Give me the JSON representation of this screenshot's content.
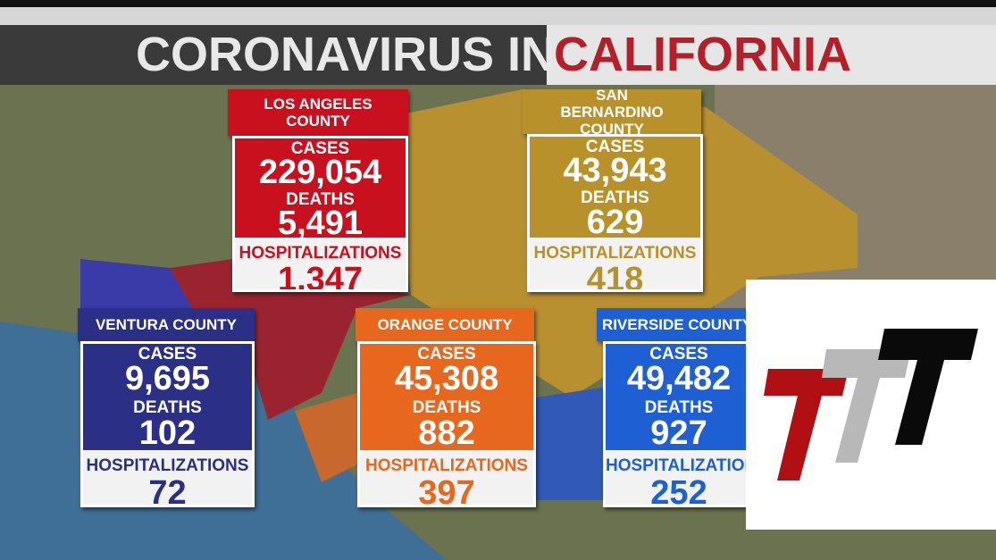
{
  "header": {
    "title_left": "CORONAVIRUS IN",
    "title_right": "CALIFORNIA"
  },
  "counties": [
    {
      "name": "LOS ANGELES COUNTY",
      "cases_label": "CASES",
      "cases": "229,054",
      "deaths_label": "DEATHS",
      "deaths": "5,491",
      "hosp_label": "HOSPITALIZATIONS",
      "hosp": "1,347"
    },
    {
      "name": "SAN BERNARDINO COUNTY",
      "cases_label": "CASES",
      "cases": "43,943",
      "deaths_label": "DEATHS",
      "deaths": "629",
      "hosp_label": "HOSPITALIZATIONS",
      "hosp": "418"
    },
    {
      "name": "VENTURA COUNTY",
      "cases_label": "CASES",
      "cases": "9,695",
      "deaths_label": "DEATHS",
      "deaths": "102",
      "hosp_label": "HOSPITALIZATIONS",
      "hosp": "72"
    },
    {
      "name": "ORANGE COUNTY",
      "cases_label": "CASES",
      "cases": "45,308",
      "deaths_label": "DEATHS",
      "deaths": "882",
      "hosp_label": "HOSPITALIZATIONS",
      "hosp": "397"
    },
    {
      "name": "RIVERSIDE COUNTY",
      "cases_label": "CASES",
      "cases": "49,482",
      "deaths_label": "DEATHS",
      "deaths": "927",
      "hosp_label": "HOSPITALIZATIONS",
      "hosp": "252"
    }
  ]
}
